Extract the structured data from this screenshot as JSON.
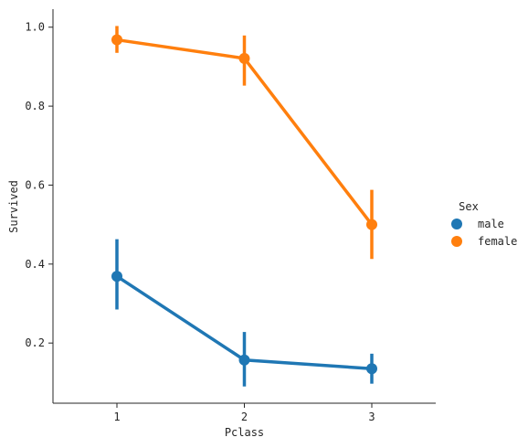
{
  "chart_data": {
    "type": "line",
    "categories": [
      "1",
      "2",
      "3"
    ],
    "xlabel": "Pclass",
    "ylabel": "Survived",
    "ylim": [
      0.0476,
      1.0457
    ],
    "yticks": [
      0.2,
      0.4,
      0.6,
      0.8,
      1.0
    ],
    "ytick_labels": [
      "0.2",
      "0.4",
      "0.6",
      "0.8",
      "1.0"
    ],
    "grid": false,
    "legend": {
      "title": "Sex",
      "placement": "right"
    },
    "series": [
      {
        "name": "male",
        "color": "#1f77b4",
        "values": [
          0.369,
          0.157,
          0.135
        ],
        "ci": [
          [
            0.285,
            0.463
          ],
          [
            0.09,
            0.228
          ],
          [
            0.097,
            0.173
          ]
        ]
      },
      {
        "name": "female",
        "color": "#ff7f0e",
        "values": [
          0.968,
          0.921,
          0.5
        ],
        "ci": [
          [
            0.935,
            1.003
          ],
          [
            0.852,
            0.979
          ],
          [
            0.413,
            0.588
          ]
        ]
      }
    ]
  }
}
